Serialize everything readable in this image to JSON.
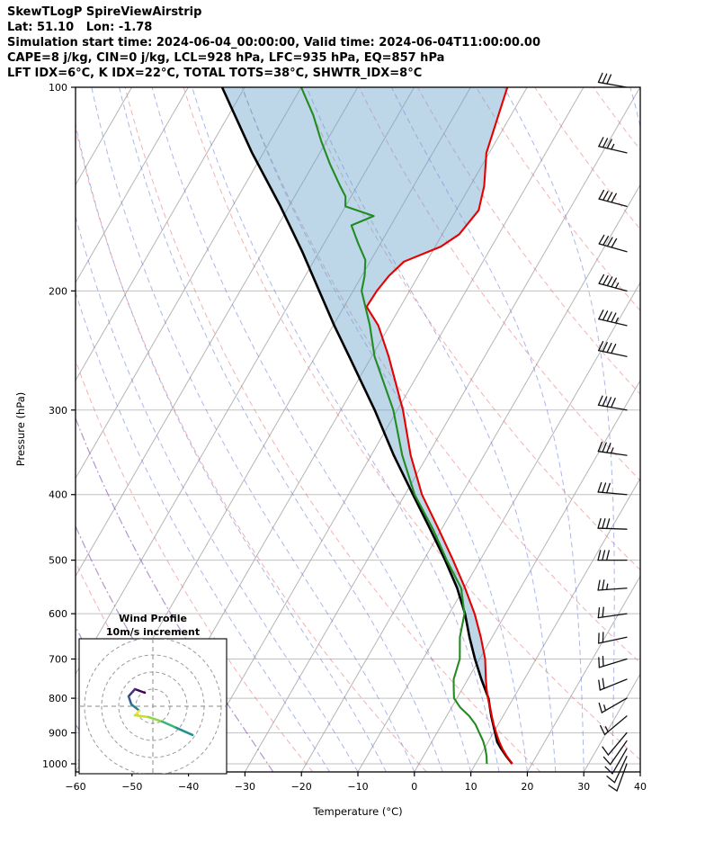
{
  "header": {
    "lines": [
      "SkewTLogP SpireViewAirstrip",
      "Lat: 51.10   Lon: -1.78",
      "Simulation start time: 2024-06-04_00:00:00, Valid time: 2024-06-04T11:00:00.00",
      "CAPE=8 j/kg, CIN=0 j/kg, LCL=928 hPa, LFC=935 hPa, EQ=857 hPa",
      "LFT IDX=6°C, K IDX=22°C, TOTAL TOTS=38°C, SHWTR_IDX=8°C"
    ]
  },
  "axis": {
    "xlabel": "Temperature (°C)",
    "ylabel": "Pressure (hPa)",
    "x_tick_values": [
      -60,
      -50,
      -40,
      -30,
      -20,
      -10,
      0,
      10,
      20,
      30,
      40
    ],
    "x_tick_labels": [
      "−60",
      "−50",
      "−40",
      "−30",
      "−20",
      "−10",
      "0",
      "10",
      "20",
      "30",
      "40"
    ],
    "p_tick_values": [
      100,
      200,
      300,
      400,
      500,
      600,
      700,
      800,
      900,
      1000
    ],
    "p_tick_labels": [
      "100",
      "200",
      "300",
      "400",
      "500",
      "600",
      "700",
      "800",
      "900",
      "1000"
    ]
  },
  "colors": {
    "temperature": "#e60000",
    "dewpoint": "#228b22",
    "parcel": "#000000",
    "cape_fill": "#6da4cc",
    "dry_adiabat": "#e57373",
    "moist_adiabat": "#5a6fd6",
    "purple_adiabat": "#9467bd",
    "isotherm": "#a8a8a8",
    "isobar": "#c0c0c0",
    "barb": "#111111",
    "ring": "#999999",
    "crosshair": "#888888"
  },
  "chart_data": {
    "type": "skewt-log-p",
    "title": "SkewTLogP SpireViewAirstrip",
    "xlim": [
      -60,
      40
    ],
    "plim": [
      100,
      1028
    ],
    "skew_rotation_deg": 30,
    "temperature_profile": [
      [
        1000,
        16.5
      ],
      [
        975,
        14.8
      ],
      [
        950,
        13.2
      ],
      [
        925,
        11.8
      ],
      [
        900,
        10.5
      ],
      [
        875,
        9.2
      ],
      [
        850,
        8.0
      ],
      [
        825,
        6.8
      ],
      [
        800,
        5.5
      ],
      [
        775,
        4.3
      ],
      [
        750,
        3.2
      ],
      [
        700,
        1.0
      ],
      [
        650,
        -2.0
      ],
      [
        600,
        -5.5
      ],
      [
        550,
        -9.8
      ],
      [
        500,
        -14.8
      ],
      [
        450,
        -20.5
      ],
      [
        400,
        -27.0
      ],
      [
        350,
        -33.0
      ],
      [
        300,
        -39.0
      ],
      [
        250,
        -47.0
      ],
      [
        225,
        -52.0
      ],
      [
        211,
        -56.0
      ],
      [
        200,
        -55.8
      ],
      [
        190,
        -55.2
      ],
      [
        181,
        -54.0
      ],
      [
        172,
        -49.0
      ],
      [
        165,
        -47.0
      ],
      [
        152,
        -46.0
      ],
      [
        140,
        -47.5
      ],
      [
        125,
        -50.5
      ],
      [
        100,
        -53.5
      ]
    ],
    "dewpoint_profile": [
      [
        1000,
        12.0
      ],
      [
        975,
        11.2
      ],
      [
        950,
        10.2
      ],
      [
        925,
        9.0
      ],
      [
        900,
        7.5
      ],
      [
        875,
        6.0
      ],
      [
        850,
        4.0
      ],
      [
        825,
        1.5
      ],
      [
        800,
        -0.5
      ],
      [
        775,
        -1.5
      ],
      [
        750,
        -2.5
      ],
      [
        700,
        -3.5
      ],
      [
        650,
        -5.7
      ],
      [
        600,
        -7.3
      ],
      [
        550,
        -10.5
      ],
      [
        500,
        -15.9
      ],
      [
        450,
        -21.5
      ],
      [
        400,
        -28.3
      ],
      [
        350,
        -34.5
      ],
      [
        300,
        -40.7
      ],
      [
        250,
        -49.5
      ],
      [
        225,
        -53.5
      ],
      [
        200,
        -58.5
      ],
      [
        190,
        -59.5
      ],
      [
        180,
        -61.0
      ],
      [
        170,
        -64.0
      ],
      [
        160,
        -67.0
      ],
      [
        155,
        -64.0
      ],
      [
        150,
        -70.0
      ],
      [
        145,
        -71.0
      ],
      [
        140,
        -73.0
      ],
      [
        130,
        -77.0
      ],
      [
        120,
        -81.0
      ],
      [
        110,
        -85.0
      ],
      [
        100,
        -90.0
      ]
    ],
    "parcel_profile": [
      [
        1000,
        16.5
      ],
      [
        975,
        14.7
      ],
      [
        950,
        13.0
      ],
      [
        928,
        11.6
      ],
      [
        900,
        10.3
      ],
      [
        850,
        7.9
      ],
      [
        800,
        5.6
      ],
      [
        750,
        2.4
      ],
      [
        700,
        -0.8
      ],
      [
        650,
        -4.0
      ],
      [
        600,
        -7.2
      ],
      [
        550,
        -11.2
      ],
      [
        500,
        -16.2
      ],
      [
        450,
        -22.0
      ],
      [
        400,
        -28.6
      ],
      [
        350,
        -36.0
      ],
      [
        300,
        -44.0
      ],
      [
        250,
        -54.0
      ],
      [
        225,
        -59.8
      ],
      [
        200,
        -66.0
      ],
      [
        175,
        -73.0
      ],
      [
        150,
        -81.5
      ],
      [
        125,
        -92.0
      ],
      [
        100,
        -104.0
      ]
    ],
    "winds_p_dir_kt": [
      [
        1000,
        200,
        8
      ],
      [
        975,
        205,
        10
      ],
      [
        950,
        210,
        10
      ],
      [
        925,
        215,
        12
      ],
      [
        900,
        220,
        12
      ],
      [
        850,
        230,
        15
      ],
      [
        800,
        240,
        15
      ],
      [
        750,
        248,
        18
      ],
      [
        700,
        253,
        20
      ],
      [
        650,
        258,
        20
      ],
      [
        600,
        262,
        22
      ],
      [
        550,
        266,
        25
      ],
      [
        500,
        270,
        28
      ],
      [
        450,
        272,
        30
      ],
      [
        400,
        275,
        32
      ],
      [
        350,
        278,
        35
      ],
      [
        300,
        280,
        38
      ],
      [
        250,
        282,
        42
      ],
      [
        225,
        283,
        45
      ],
      [
        200,
        285,
        45
      ],
      [
        175,
        286,
        42
      ],
      [
        150,
        285,
        40
      ],
      [
        125,
        283,
        35
      ],
      [
        100,
        280,
        32
      ]
    ],
    "background": {
      "isotherms_c": {
        "start": -120,
        "end": 40,
        "step": 10
      },
      "dry_adiabats_c": {
        "start": -60,
        "end": 180,
        "step": 20
      },
      "moist_adiabats_c": {
        "start": -15,
        "end": 65,
        "step": 5
      },
      "purple_adiabats_c": {
        "start": -55,
        "end": -25,
        "step": 10
      }
    },
    "hodograph": {
      "title_lines": [
        "Wind Profile",
        "10m/s increment"
      ],
      "ring_increment_mps": 10,
      "rings_mps": [
        10,
        20,
        30,
        40
      ],
      "trace_uv_mps": [
        [
          -4.7,
          7.9
        ],
        [
          -10.5,
          10.0
        ],
        [
          -14.2,
          5.8
        ],
        [
          -12.6,
          1.1
        ],
        [
          -7.9,
          -2.6
        ],
        [
          -10.5,
          -5.3
        ],
        [
          -2.6,
          -6.3
        ],
        [
          5.3,
          -8.9
        ],
        [
          13.7,
          -12.6
        ],
        [
          23.2,
          -16.8
        ]
      ],
      "segment_colors": [
        "#440154",
        "#46327e",
        "#365c8d",
        "#277f8e",
        "#fde725",
        "#c8e020",
        "#90d743",
        "#35b779",
        "#21918c"
      ]
    }
  }
}
